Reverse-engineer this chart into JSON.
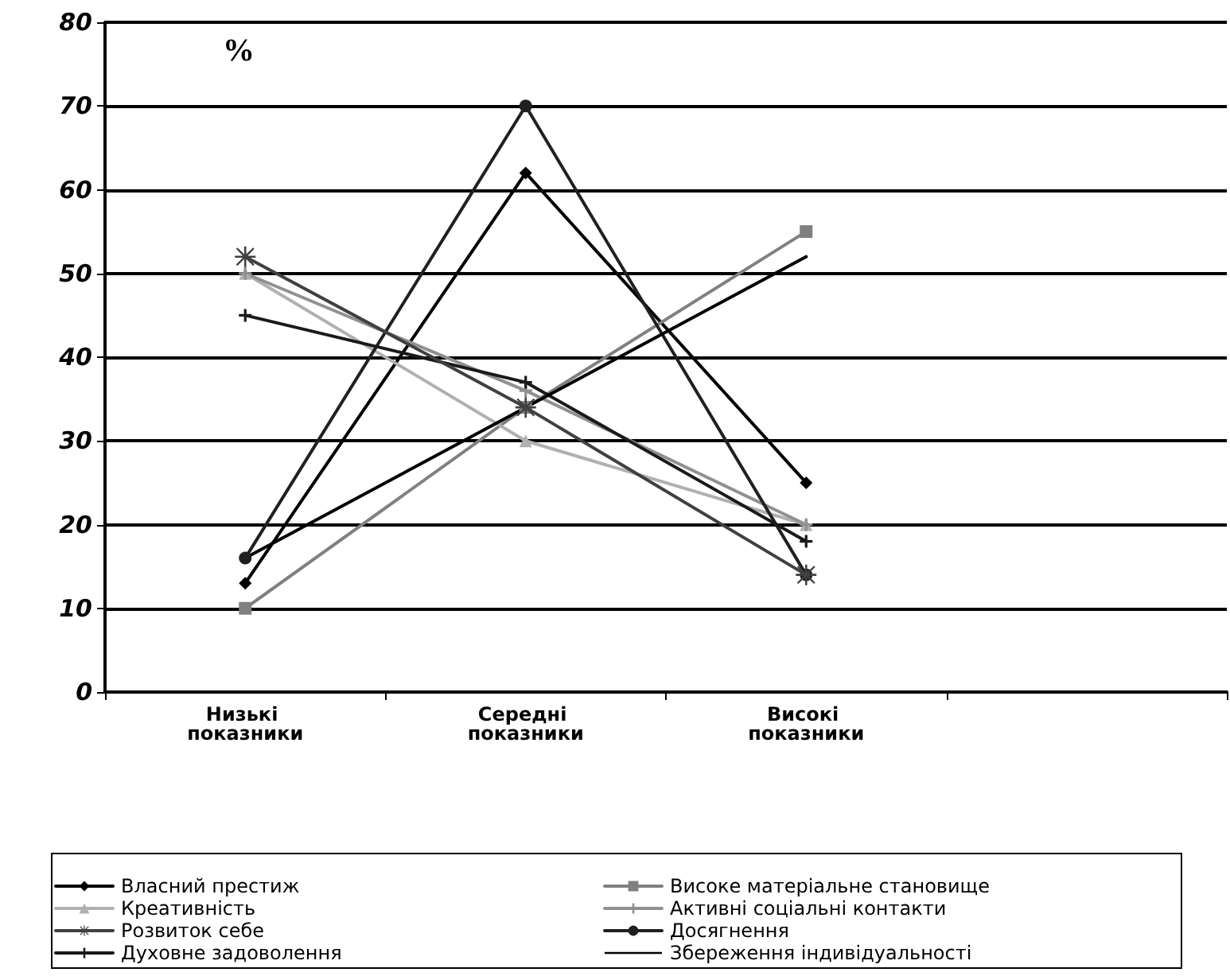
{
  "chart_data": {
    "type": "line",
    "ylabel": "%",
    "categories": [
      "Низькі показники",
      "Середні показники",
      "Високі показники",
      null
    ],
    "ylim": [
      0,
      80
    ],
    "yticks": [
      0,
      10,
      20,
      30,
      40,
      50,
      60,
      70,
      80
    ],
    "grid": "y",
    "legend": "bottom",
    "series": [
      {
        "name": "Власний престиж",
        "color": "#000000",
        "marker": "diamond",
        "values": [
          13,
          62,
          25,
          null
        ]
      },
      {
        "name": "Високе матеріальне становище",
        "color": "#808080",
        "marker": "square",
        "values": [
          10,
          34,
          55,
          null
        ]
      },
      {
        "name": "Креативність",
        "color": "#b0b0b0",
        "marker": "triangle",
        "values": [
          50,
          30,
          20,
          null
        ]
      },
      {
        "name": "Активні соціальні контакти",
        "color": "#909090",
        "marker": "cross",
        "values": [
          50,
          36,
          20,
          null
        ]
      },
      {
        "name": "Розвиток себе",
        "color": "#404040",
        "marker": "star",
        "values": [
          52,
          34,
          14,
          null
        ]
      },
      {
        "name": "Досягнення",
        "color": "#202020",
        "marker": "circle",
        "values": [
          16,
          70,
          14,
          null
        ]
      },
      {
        "name": "Духовне задоволення",
        "color": "#1a1a1a",
        "marker": "cross",
        "values": [
          45,
          37,
          18,
          null
        ]
      },
      {
        "name": "Збереження індивідуальності",
        "color": "#000000",
        "marker": "none",
        "values": [
          16,
          34,
          52,
          null
        ]
      }
    ]
  }
}
